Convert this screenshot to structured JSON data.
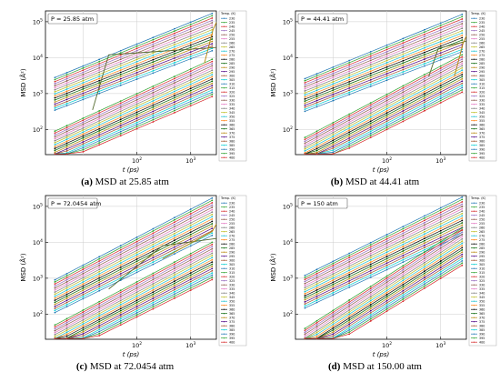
{
  "chart_data": [
    {
      "type": "line",
      "panel_id": "a",
      "caption_letter": "(a)",
      "caption_text": " MSD at 25.85 atm",
      "pressure_label": "P = 25.85  atm",
      "xlabel": "t (ps)",
      "ylabel": "MSD (Å²)",
      "xscale": "log",
      "yscale": "log",
      "xlim": [
        2,
        3000
      ],
      "ylim": [
        20,
        200000
      ],
      "grid": true,
      "legend_title": "Temp. (K)",
      "legend_placement": "right",
      "temperatures": [
        "230",
        "235",
        "240",
        "245",
        "250",
        "255",
        "260",
        "265",
        "270",
        "275",
        "280",
        "285",
        "290",
        "295",
        "300",
        "305",
        "310",
        "315",
        "320",
        "325",
        "330",
        "335",
        "340",
        "345",
        "350",
        "355",
        "360",
        "365",
        "370",
        "375",
        "380",
        "385",
        "390",
        "395",
        "400"
      ],
      "x": [
        3,
        5,
        10,
        20,
        50,
        100,
        200,
        500,
        1000,
        2500
      ],
      "series_bands": [
        {
          "group": "liquid",
          "start": 2800,
          "end": 170000
        },
        {
          "group": "solid",
          "start": 90,
          "end": 9000
        }
      ],
      "transitions": [
        {
          "from_x": 15,
          "to_x": 30,
          "low": 350,
          "high": 12000
        },
        {
          "from_x": 1800,
          "to_x": 2600,
          "low": 7000,
          "high": 60000
        }
      ]
    },
    {
      "type": "line",
      "panel_id": "b",
      "caption_letter": "(b)",
      "caption_text": " MSD at 44.41 atm",
      "pressure_label": "P = 44.41  atm",
      "xlabel": "t (ps)",
      "ylabel": "MSD (Å²)",
      "xscale": "log",
      "yscale": "log",
      "xlim": [
        2,
        3000
      ],
      "ylim": [
        20,
        200000
      ],
      "grid": true,
      "legend_title": "Temp. (K)",
      "legend_placement": "right",
      "temperatures": [
        "230",
        "235",
        "240",
        "245",
        "250",
        "255",
        "260",
        "265",
        "270",
        "275",
        "280",
        "285",
        "290",
        "295",
        "300",
        "305",
        "310",
        "315",
        "320",
        "325",
        "330",
        "335",
        "340",
        "345",
        "350",
        "355",
        "360",
        "365",
        "370",
        "375",
        "380",
        "385",
        "390",
        "395",
        "400"
      ],
      "x": [
        3,
        5,
        10,
        20,
        50,
        100,
        200,
        500,
        1000,
        2500
      ],
      "series_bands": [
        {
          "group": "liquid",
          "start": 2600,
          "end": 160000
        },
        {
          "group": "solid",
          "start": 60,
          "end": 12000
        }
      ],
      "transitions": [
        {
          "from_x": 600,
          "to_x": 900,
          "low": 3000,
          "high": 18000
        },
        {
          "from_x": 1800,
          "to_x": 2600,
          "low": 3000,
          "high": 25000
        }
      ]
    },
    {
      "type": "line",
      "panel_id": "c",
      "caption_letter": "(c)",
      "caption_text": " MSD at 72.0454 atm",
      "pressure_label": "P = 72.0454  atm",
      "xlabel": "t (ps)",
      "ylabel": "MSD (Å²)",
      "xscale": "log",
      "yscale": "log",
      "xlim": [
        2,
        3000
      ],
      "ylim": [
        20,
        200000
      ],
      "grid": true,
      "legend_title": "Temp. (K)",
      "legend_placement": "right",
      "temperatures": [
        "230",
        "235",
        "240",
        "245",
        "250",
        "255",
        "260",
        "265",
        "270",
        "275",
        "280",
        "285",
        "290",
        "295",
        "300",
        "305",
        "310",
        "315",
        "320",
        "325",
        "330",
        "335",
        "340",
        "345",
        "350",
        "355",
        "360",
        "365",
        "370",
        "375",
        "380",
        "385",
        "390",
        "395",
        "400"
      ],
      "x": [
        3,
        5,
        10,
        20,
        50,
        100,
        200,
        500,
        1000,
        2500
      ],
      "series_bands": [
        {
          "group": "liquid",
          "start": 900,
          "end": 170000
        },
        {
          "group": "solid",
          "start": 50,
          "end": 10000
        }
      ],
      "transitions": [
        {
          "from_x": 30,
          "to_x": 300,
          "low": 500,
          "high": 8000
        },
        {
          "from_x": 300,
          "to_x": 2500,
          "low": 3500,
          "high": 20000
        }
      ]
    },
    {
      "type": "line",
      "panel_id": "d",
      "caption_letter": "(d)",
      "caption_text": " MSD at 150.00 atm",
      "pressure_label": "P = 150  atm",
      "xlabel": "t (ps)",
      "ylabel": "MSD (Å²)",
      "xscale": "log",
      "yscale": "log",
      "xlim": [
        2,
        3000
      ],
      "ylim": [
        20,
        200000
      ],
      "grid": true,
      "legend_title": "Temp. (K)",
      "legend_placement": "right",
      "temperatures": [
        "230",
        "235",
        "240",
        "245",
        "250",
        "255",
        "260",
        "265",
        "270",
        "275",
        "280",
        "285",
        "290",
        "295",
        "300",
        "305",
        "310",
        "315",
        "320",
        "325",
        "330",
        "335",
        "340",
        "345",
        "350",
        "355",
        "360",
        "365",
        "370",
        "375",
        "380",
        "385",
        "390",
        "395",
        "400"
      ],
      "x": [
        3,
        5,
        10,
        20,
        50,
        100,
        200,
        500,
        1000,
        2500
      ],
      "series_bands": [
        {
          "group": "liquid",
          "start": 1200,
          "end": 180000
        },
        {
          "group": "solid",
          "start": 40,
          "end": 25000
        }
      ],
      "transitions": []
    }
  ],
  "colors": [
    "#1f77b4",
    "#2ca02c",
    "#d62728",
    "#9467bd",
    "#8c564b",
    "#e377c2",
    "#7f7f7f",
    "#bcbd22",
    "#17becf",
    "#ff7f0e",
    "#000000",
    "#006400",
    "#b8860b",
    "#4b0082",
    "#a0522d",
    "#00ced1"
  ]
}
